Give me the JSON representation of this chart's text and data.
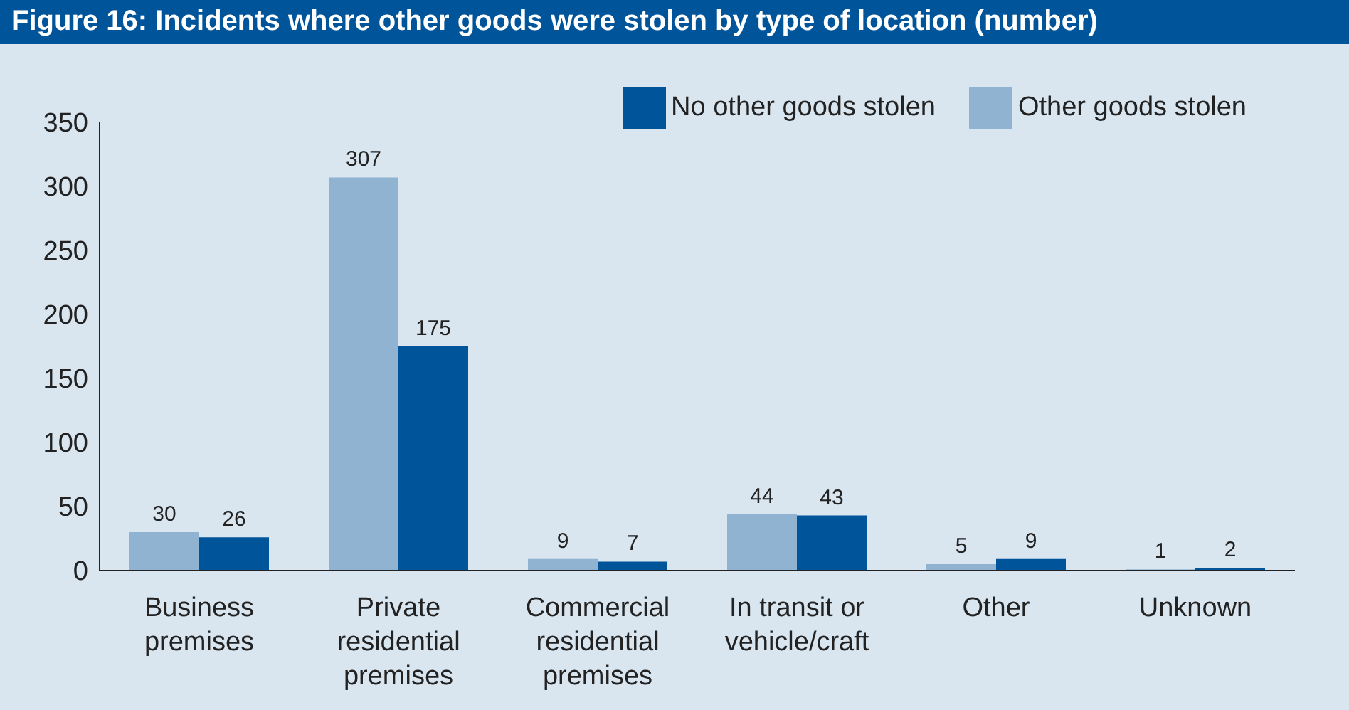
{
  "chart_data": {
    "type": "bar",
    "title": "Figure 16: Incidents where other goods were stolen by type of location (number)",
    "categories": [
      "Business premises",
      "Private residential premises",
      "Commercial residential premises",
      "In transit or vehicle/craft",
      "Other",
      "Unknown"
    ],
    "series": [
      {
        "name": "Other goods stolen",
        "color": "#8fb3d1",
        "values": [
          30,
          307,
          9,
          44,
          5,
          1
        ]
      },
      {
        "name": "No other goods stolen",
        "color": "#00549a",
        "values": [
          26,
          175,
          7,
          43,
          9,
          2
        ]
      }
    ],
    "ylim": [
      0,
      350
    ],
    "yticks": [
      0,
      50,
      100,
      150,
      200,
      250,
      300,
      350
    ],
    "grid": false,
    "legend": "top right",
    "data_labels": true
  }
}
